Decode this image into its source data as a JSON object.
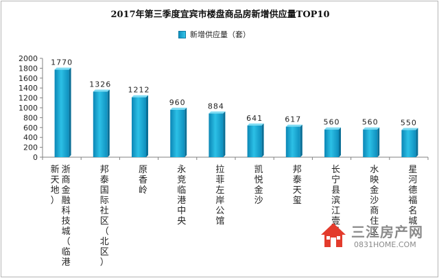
{
  "chart_data": {
    "type": "bar",
    "title": "2017年第三季度宜宾市楼盘商品房新增供应量TOP10",
    "series": [
      {
        "name": "新增供应量（套）",
        "color": "#1ba9d6",
        "values": [
          1770,
          1326,
          1212,
          960,
          884,
          641,
          617,
          560,
          560,
          550
        ]
      }
    ],
    "categories": [
      "浙商金融科技城（临港新天地）",
      "邦泰国际社区（北区）",
      "原香岭",
      "永竞临港中央",
      "拉菲左岸公馆",
      "凯悦金沙",
      "邦泰天玺",
      "长宁县滨江壹号",
      "水映金沙商住区",
      "星河德福名城"
    ],
    "yticks": [
      0,
      200,
      400,
      600,
      800,
      1000,
      1200,
      1400,
      1600,
      1800,
      2000
    ],
    "ylim": [
      0,
      2000
    ],
    "xlabel": "",
    "ylabel": "",
    "legend_position": "top-center",
    "grid": false
  },
  "watermark": {
    "title": "三江房产网",
    "url": "0831HOME.COM"
  }
}
